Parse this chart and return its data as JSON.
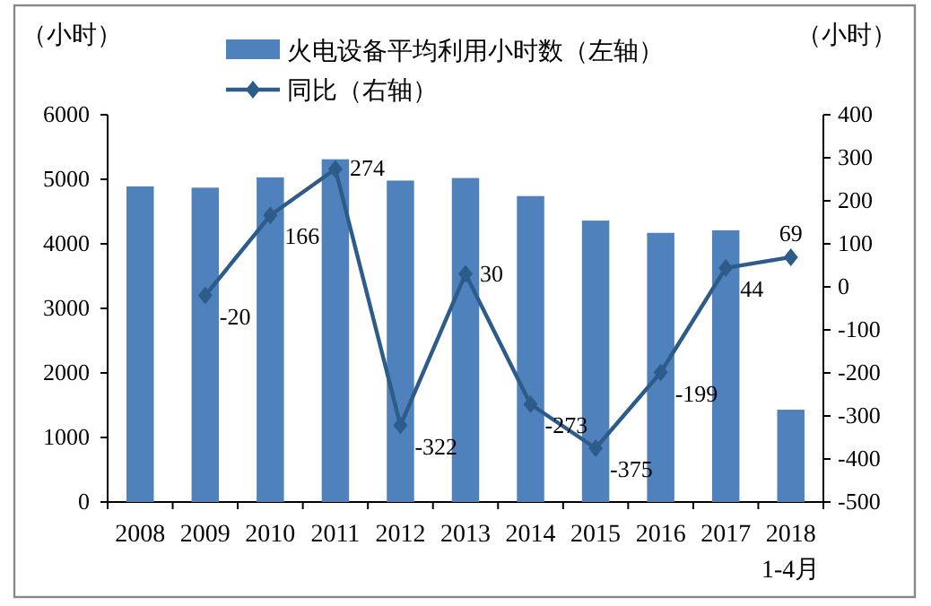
{
  "chart_data": {
    "type": "bar",
    "ylabel": "（小时）",
    "y2label": "（小时）",
    "categories": [
      "2008",
      "2009",
      "2010",
      "2011",
      "2012",
      "2013",
      "2014",
      "2015",
      "2016",
      "2017",
      "2018\n1-4月"
    ],
    "series": [
      {
        "name": "火电设备平均利用小时数（左轴）",
        "color": "#4f81bd",
        "values": [
          4890,
          4870,
          5030,
          5310,
          4980,
          5020,
          4740,
          4360,
          4170,
          4210,
          1430
        ]
      },
      {
        "name": "同比（右轴）",
        "type": "line",
        "axis": "y2",
        "color": "#2e5c8a",
        "marker": "diamond",
        "values": [
          null,
          -20,
          166,
          274,
          -322,
          30,
          -273,
          -375,
          -199,
          44,
          69
        ],
        "value_labels": [
          null,
          "-20",
          "166",
          "274",
          "-322",
          "30",
          "-273",
          "-375",
          "-199",
          "44",
          "69"
        ]
      }
    ],
    "ylim": [
      0,
      6000
    ],
    "yticks": [
      0,
      1000,
      2000,
      3000,
      4000,
      5000,
      6000
    ],
    "y2lim": [
      -500,
      400
    ],
    "y2ticks": [
      -500,
      -400,
      -300,
      -200,
      -100,
      0,
      100,
      200,
      300,
      400
    ],
    "legend": "top",
    "grid": false
  }
}
